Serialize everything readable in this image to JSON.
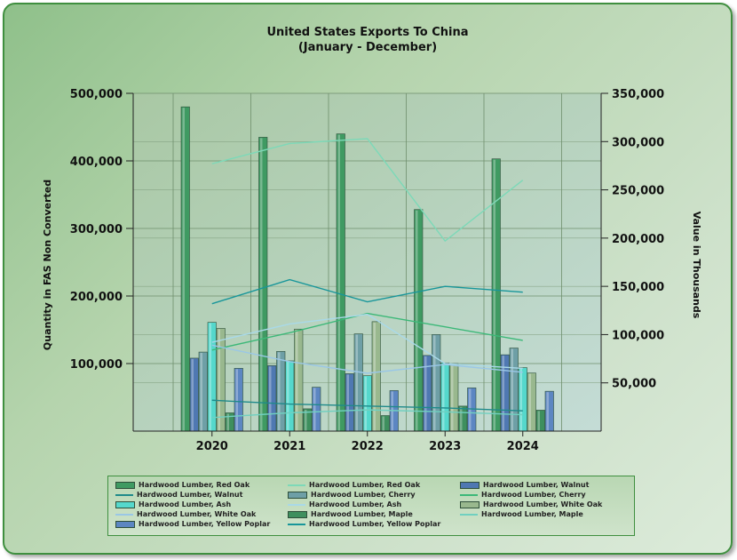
{
  "chart_data": {
    "type": "bar+line",
    "title": "United States  Exports To China",
    "subtitle": "(January - December)",
    "ylabel": "Quantity in FAS Non Converted",
    "y2label": "Value in Thousands",
    "ylim": [
      0,
      500000
    ],
    "y2lim": [
      0,
      350000
    ],
    "yticks": [
      "100,000",
      "200,000",
      "300,000",
      "400,000",
      "500,000"
    ],
    "yticks_values": [
      100000,
      200000,
      300000,
      400000,
      500000
    ],
    "y2ticks": [
      "50,000",
      "100,000",
      "150,000",
      "200,000",
      "250,000",
      "300,000",
      "350,000"
    ],
    "y2ticks_values": [
      50000,
      100000,
      150000,
      200000,
      250000,
      300000,
      350000
    ],
    "categories": [
      "2020",
      "2021",
      "2022",
      "2023",
      "2024"
    ],
    "bar_series": [
      {
        "name": "Hardwood Lumber, Red Oak",
        "color": "#3f9a62",
        "values": [
          480000,
          435000,
          440000,
          328000,
          403000
        ]
      },
      {
        "name": "Hardwood Lumber, Walnut",
        "color": "#4f78b2",
        "values": [
          108000,
          97000,
          85000,
          112000,
          113000
        ]
      },
      {
        "name": "Hardwood Lumber, Cherry",
        "color": "#6e9fa6",
        "values": [
          117000,
          118000,
          144000,
          143000,
          123000
        ]
      },
      {
        "name": "Hardwood Lumber, Ash",
        "color": "#55d8cc",
        "values": [
          161000,
          104000,
          82000,
          101000,
          94000
        ]
      },
      {
        "name": "Hardwood Lumber, White Oak",
        "color": "#99b88e",
        "values": [
          152000,
          151000,
          162000,
          100000,
          86000
        ]
      },
      {
        "name": "Hardwood Lumber, Maple",
        "color": "#3e8f5e",
        "values": [
          27000,
          33000,
          23000,
          37000,
          31000
        ]
      },
      {
        "name": "Hardwood Lumber, Yellow Poplar",
        "color": "#5c86c2",
        "values": [
          93000,
          65000,
          60000,
          64000,
          59000
        ]
      }
    ],
    "line_series": [
      {
        "name": "Hardwood Lumber, Red Oak",
        "color": "#7dd9b8",
        "values": [
          277000,
          298000,
          303000,
          197000,
          260000
        ]
      },
      {
        "name": "Hardwood Lumber, Walnut",
        "color": "#1f8a8a",
        "values": [
          32000,
          28000,
          26000,
          24000,
          21000
        ]
      },
      {
        "name": "Hardwood Lumber, Cherry",
        "color": "#3cb878",
        "values": [
          84000,
          102000,
          122000,
          108000,
          94000
        ]
      },
      {
        "name": "Hardwood Lumber, Ash",
        "color": "#a9d9e8",
        "values": [
          92000,
          111000,
          121000,
          70000,
          65000
        ]
      },
      {
        "name": "Hardwood Lumber, White Oak",
        "color": "#9ac7e6",
        "values": [
          89000,
          72000,
          60000,
          69000,
          61000
        ]
      },
      {
        "name": "Hardwood Lumber, Maple",
        "color": "#70d0c0",
        "values": [
          14000,
          19000,
          22000,
          20000,
          17000
        ]
      },
      {
        "name": "Hardwood Lumber, Yellow Poplar",
        "color": "#18969a",
        "values": [
          132000,
          157000,
          134000,
          150000,
          144000
        ]
      }
    ],
    "legend": [
      {
        "label": "Hardwood Lumber, Red Oak",
        "kind": "bar",
        "color": "#3f9a62"
      },
      {
        "label": "Hardwood Lumber, Red Oak",
        "kind": "line",
        "color": "#7dd9b8"
      },
      {
        "label": "Hardwood Lumber, Walnut",
        "kind": "bar",
        "color": "#4f78b2"
      },
      {
        "label": "Hardwood Lumber, Walnut",
        "kind": "line",
        "color": "#1f8a8a"
      },
      {
        "label": "Hardwood Lumber, Cherry",
        "kind": "bar",
        "color": "#6e9fa6"
      },
      {
        "label": "Hardwood Lumber, Cherry",
        "kind": "line",
        "color": "#3cb878"
      },
      {
        "label": "Hardwood Lumber, Ash",
        "kind": "bar",
        "color": "#55d8cc"
      },
      {
        "label": "Hardwood Lumber, Ash",
        "kind": "line",
        "color": "#a9d9e8"
      },
      {
        "label": "Hardwood Lumber, White Oak",
        "kind": "bar",
        "color": "#99b88e"
      },
      {
        "label": "Hardwood Lumber, White Oak",
        "kind": "line",
        "color": "#9ac7e6"
      },
      {
        "label": "Hardwood Lumber, Maple",
        "kind": "bar",
        "color": "#3e8f5e"
      },
      {
        "label": "Hardwood Lumber, Maple",
        "kind": "line",
        "color": "#70d0c0"
      },
      {
        "label": "Hardwood Lumber, Yellow Poplar",
        "kind": "bar",
        "color": "#5c86c2"
      },
      {
        "label": "Hardwood Lumber, Yellow Poplar",
        "kind": "line",
        "color": "#18969a"
      }
    ],
    "legend_placement": "bottom-center",
    "grid": true
  }
}
